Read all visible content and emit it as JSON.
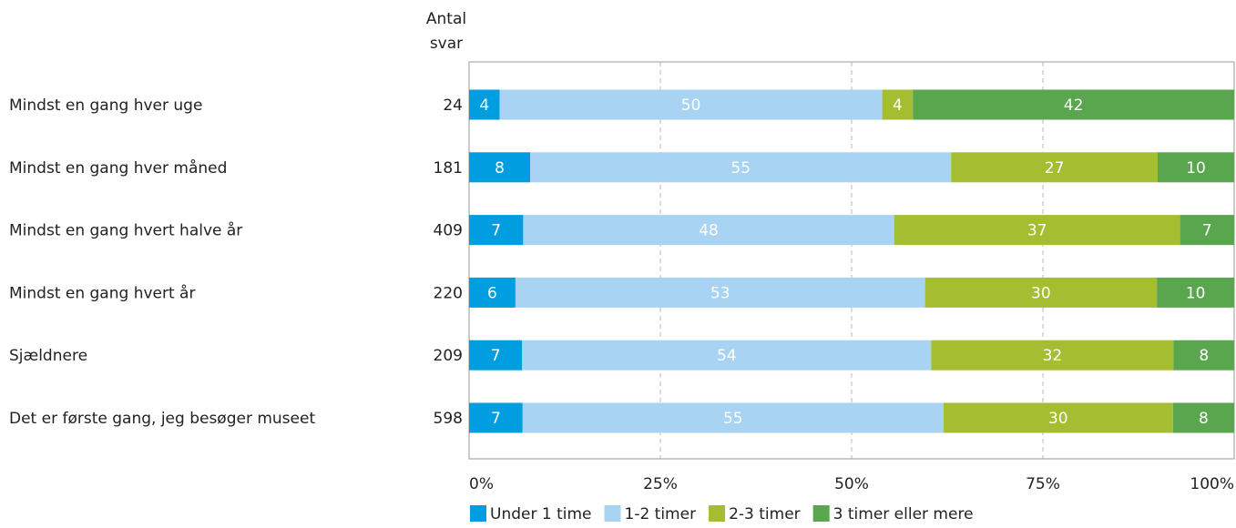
{
  "chart_data": {
    "type": "bar",
    "orientation": "horizontal",
    "stacked": "percent",
    "count_header": [
      "Antal",
      "svar"
    ],
    "categories": [
      "Mindst en gang hver uge",
      "Mindst en gang hver måned",
      "Mindst en gang hvert halve år",
      "Mindst en gang hvert år",
      "Sjældnere",
      "Det er første gang, jeg besøger museet"
    ],
    "counts": [
      24,
      181,
      409,
      220,
      209,
      598
    ],
    "series": [
      {
        "name": "Under 1 time",
        "color": "#009ee0",
        "values": [
          4,
          8,
          7,
          6,
          7,
          7
        ]
      },
      {
        "name": "1-2 timer",
        "color": "#a8d3f3",
        "values": [
          50,
          55,
          48,
          53,
          54,
          55
        ]
      },
      {
        "name": "2-3 timer",
        "color": "#a5be31",
        "values": [
          4,
          27,
          37,
          30,
          32,
          30
        ]
      },
      {
        "name": "3 timer eller mere",
        "color": "#5aa64f",
        "values": [
          42,
          10,
          7,
          10,
          8,
          8
        ]
      }
    ],
    "x_ticks": [
      "0%",
      "25%",
      "50%",
      "75%",
      "100%"
    ],
    "xlim": [
      0,
      100
    ],
    "grid": "vertical dashed",
    "legend_position": "bottom"
  }
}
